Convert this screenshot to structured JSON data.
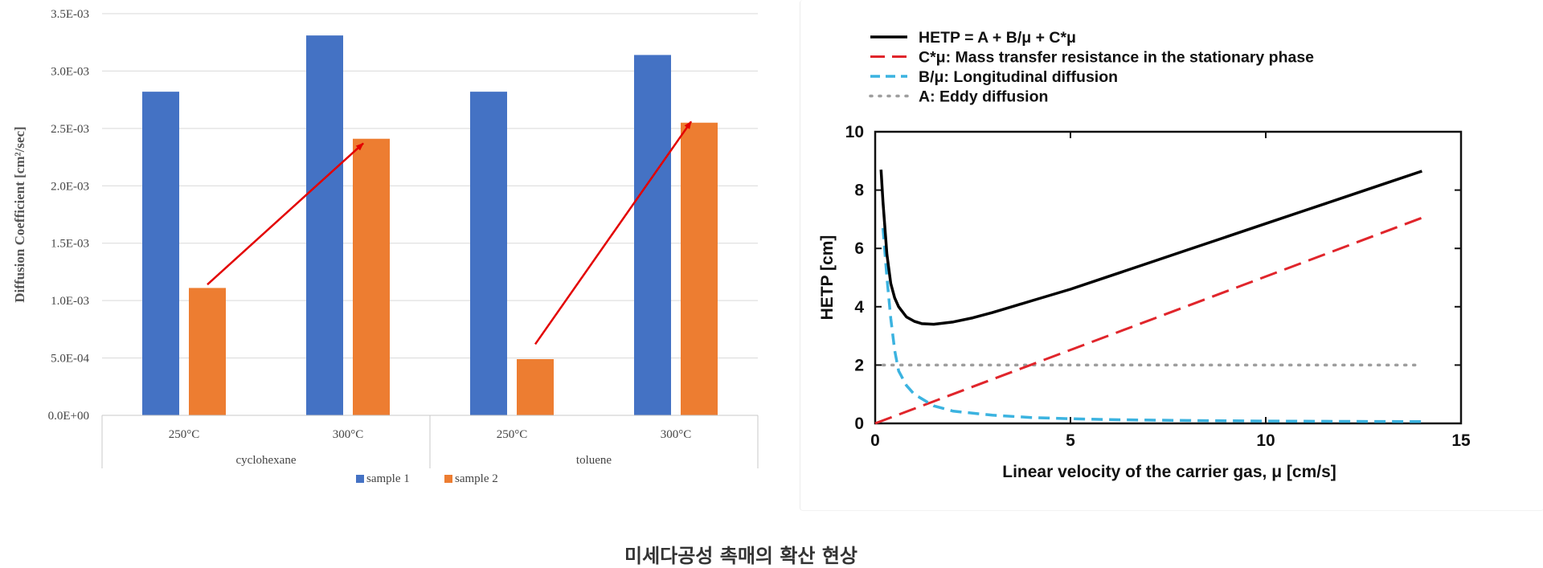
{
  "caption": "미세다공성 촉매의 확산 현상",
  "colors": {
    "sample1": "#4472C4",
    "sample2": "#ED7D31",
    "arrow": "#E30000",
    "hetp": "#000000",
    "mass_transfer": "#E0252B",
    "longitudinal": "#3BB3E0",
    "eddy": "#9E9E9E"
  },
  "chart_data": [
    {
      "type": "bar",
      "title": "",
      "ylabel": "Diffusion Coefficient [cm²/sec]",
      "xlabel": "",
      "ylim": [
        0,
        0.0035
      ],
      "yticks": [
        "0.0E+00",
        "5.0E-04",
        "1.0E-03",
        "1.5E-03",
        "2.0E-03",
        "2.5E-03",
        "3.0E-03",
        "3.5E-03"
      ],
      "ytick_values": [
        0,
        0.0005,
        0.001,
        0.0015,
        0.002,
        0.0025,
        0.003,
        0.0035
      ],
      "groups": [
        {
          "name": "cyclohexane",
          "categories": [
            "250°C",
            "300°C"
          ]
        },
        {
          "name": "toluene",
          "categories": [
            "250°C",
            "300°C"
          ]
        }
      ],
      "categories": [
        "250°C",
        "300°C",
        "250°C",
        "300°C"
      ],
      "series": [
        {
          "name": "sample 1",
          "values": [
            0.00282,
            0.00331,
            0.00282,
            0.00314
          ]
        },
        {
          "name": "sample 2",
          "values": [
            0.00111,
            0.00241,
            0.00049,
            0.00255
          ]
        }
      ],
      "annotations": [
        {
          "type": "arrow",
          "from": {
            "category": 0,
            "value": 0.00114
          },
          "to": {
            "category": 1,
            "value": 0.00237
          }
        },
        {
          "type": "arrow",
          "from": {
            "category": 2,
            "value": 0.00062
          },
          "to": {
            "category": 3,
            "value": 0.00256
          }
        }
      ],
      "grid": true,
      "legend": "bottom"
    },
    {
      "type": "line",
      "title": "",
      "xlabel": "Linear velocity of the carrier gas, μ [cm/s]",
      "ylabel": "HETP [cm]",
      "xlim": [
        0,
        15
      ],
      "ylim": [
        0,
        10
      ],
      "xticks": [
        "0",
        "5",
        "10",
        "15"
      ],
      "xtick_values": [
        0,
        5,
        10,
        15
      ],
      "yticks": [
        "0",
        "2",
        "4",
        "6",
        "8",
        "10"
      ],
      "ytick_values": [
        0,
        2,
        4,
        6,
        8,
        10
      ],
      "series": [
        {
          "name": "HETP = A + B/μ + C*μ",
          "x": [
            0.15,
            0.2,
            0.3,
            0.4,
            0.5,
            0.6,
            0.8,
            1.0,
            1.2,
            1.5,
            2,
            2.5,
            3,
            4,
            5,
            6,
            7,
            8,
            9,
            10,
            11,
            12,
            13,
            14
          ],
          "y": [
            8.7,
            7.6,
            5.8,
            4.8,
            4.3,
            4.0,
            3.65,
            3.5,
            3.42,
            3.4,
            3.48,
            3.62,
            3.8,
            4.2,
            4.6,
            5.05,
            5.5,
            5.95,
            6.4,
            6.85,
            7.3,
            7.75,
            8.2,
            8.65
          ]
        },
        {
          "name": "C*μ: Mass transfer resistance in the stationary phase",
          "x": [
            0,
            14
          ],
          "y": [
            0,
            7.05
          ]
        },
        {
          "name": "B/μ: Longitudinal diffusion",
          "x": [
            0.2,
            0.3,
            0.4,
            0.5,
            0.6,
            0.8,
            1.0,
            1.5,
            2,
            3,
            4,
            5,
            6,
            8,
            10,
            12,
            14
          ],
          "y": [
            6.7,
            5.0,
            3.6,
            2.5,
            1.8,
            1.3,
            1.0,
            0.6,
            0.42,
            0.28,
            0.2,
            0.16,
            0.13,
            0.1,
            0.08,
            0.07,
            0.06
          ]
        },
        {
          "name": "A: Eddy diffusion",
          "x": [
            0.2,
            14
          ],
          "y": [
            2,
            2
          ]
        }
      ],
      "legend": "top"
    }
  ]
}
